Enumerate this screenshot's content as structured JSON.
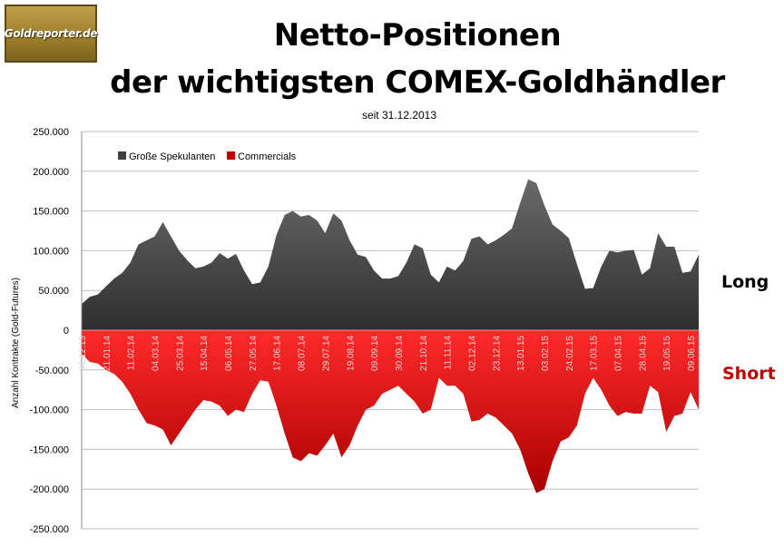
{
  "logo": {
    "text": "Goldreporter.de"
  },
  "header": {
    "title_line1": "Netto-Positionen",
    "title_line2": "der wichtigsten COMEX-Goldhändler",
    "subtitle": "seit 31.12.2013"
  },
  "side_labels": {
    "long": "Long",
    "short": "Short"
  },
  "colors": {
    "long": "#3f3f3f",
    "short": "#c00000",
    "grid": "#bfbfbf"
  },
  "chart_data": {
    "type": "area",
    "title": "Netto-Positionen der wichtigsten COMEX-Goldhändler",
    "subtitle": "seit 31.12.2013",
    "ylabel": "Anzahl Kontrakte  (Gold-Futures)",
    "xlabel": "",
    "ylim": [
      -250000,
      250000
    ],
    "yticks": [
      {
        "value": 250000,
        "label": "250.000"
      },
      {
        "value": 200000,
        "label": "200.000"
      },
      {
        "value": 150000,
        "label": "150.000"
      },
      {
        "value": 100000,
        "label": "100.000"
      },
      {
        "value": 50000,
        "label": "50.000"
      },
      {
        "value": 0,
        "label": "0"
      },
      {
        "value": -50000,
        "label": "-50.000"
      },
      {
        "value": -100000,
        "label": "-100.000"
      },
      {
        "value": -150000,
        "label": "-150.000"
      },
      {
        "value": -200000,
        "label": "-200.000"
      },
      {
        "value": -250000,
        "label": "-250.000"
      }
    ],
    "grid": true,
    "legend_position": "top-left",
    "x_tick_labels": [
      "31.12.13",
      "21.01.14",
      "11.02.14",
      "04.03.14",
      "25.03.14",
      "15.04.14",
      "06.05.14",
      "27.05.14",
      "17.06.14",
      "08.07.14",
      "29.07.14",
      "19.08.14",
      "09.09.14",
      "30.09.14",
      "21.10.14",
      "11.11.14",
      "02.12.14",
      "23.12.14",
      "13.01.15",
      "03.02.15",
      "24.02.15",
      "17.03.15",
      "07.04.15",
      "28.04.15",
      "19.05.15",
      "09.06.15"
    ],
    "x_tick_every": 3,
    "x": [
      "31.12.13",
      "07.01.14",
      "14.01.14",
      "21.01.14",
      "28.01.14",
      "04.02.14",
      "11.02.14",
      "18.02.14",
      "25.02.14",
      "04.03.14",
      "11.03.14",
      "18.03.14",
      "25.03.14",
      "01.04.14",
      "08.04.14",
      "15.04.14",
      "22.04.14",
      "29.04.14",
      "06.05.14",
      "13.05.14",
      "20.05.14",
      "27.05.14",
      "03.06.14",
      "10.06.14",
      "17.06.14",
      "24.06.14",
      "01.07.14",
      "08.07.14",
      "15.07.14",
      "22.07.14",
      "29.07.14",
      "05.08.14",
      "12.08.14",
      "19.08.14",
      "26.08.14",
      "02.09.14",
      "09.09.14",
      "16.09.14",
      "23.09.14",
      "30.09.14",
      "07.10.14",
      "14.10.14",
      "21.10.14",
      "28.10.14",
      "04.11.14",
      "11.11.14",
      "18.11.14",
      "25.11.14",
      "02.12.14",
      "09.12.14",
      "16.12.14",
      "23.12.14",
      "30.12.14",
      "06.01.15",
      "13.01.15",
      "20.01.15",
      "27.01.15",
      "03.02.15",
      "10.02.15",
      "17.02.15",
      "24.02.15",
      "03.03.15",
      "10.03.15",
      "17.03.15",
      "24.03.15",
      "31.03.15",
      "07.04.15",
      "14.04.15",
      "21.04.15",
      "28.04.15",
      "05.05.15",
      "12.05.15",
      "19.05.15",
      "26.05.15",
      "02.06.15",
      "09.06.15",
      "16.06.15"
    ],
    "series": [
      {
        "name": "Große Spekulanten",
        "color": "#3f3f3f",
        "values": [
          33000,
          42000,
          45000,
          55000,
          65000,
          72000,
          85000,
          108000,
          113000,
          118000,
          136000,
          118000,
          100000,
          88000,
          78000,
          80000,
          85000,
          97000,
          90000,
          96000,
          75000,
          58000,
          60000,
          80000,
          120000,
          145000,
          150000,
          143000,
          145000,
          138000,
          122000,
          147000,
          138000,
          113000,
          95000,
          92000,
          75000,
          65000,
          65000,
          68000,
          85000,
          108000,
          103000,
          70000,
          60000,
          80000,
          75000,
          87000,
          115000,
          118000,
          108000,
          113000,
          120000,
          128000,
          160000,
          190000,
          185000,
          157000,
          133000,
          125000,
          116000,
          83000,
          52000,
          53000,
          80000,
          100000,
          98000,
          100000,
          101000,
          70000,
          78000,
          122000,
          105000,
          105000,
          72000,
          74000,
          95000
        ]
      },
      {
        "name": "Commercials",
        "color": "#c00000",
        "values": [
          -30000,
          -40000,
          -42000,
          -50000,
          -55000,
          -65000,
          -80000,
          -100000,
          -117000,
          -120000,
          -125000,
          -145000,
          -130000,
          -115000,
          -100000,
          -88000,
          -90000,
          -95000,
          -108000,
          -100000,
          -103000,
          -80000,
          -63000,
          -65000,
          -95000,
          -130000,
          -160000,
          -165000,
          -155000,
          -158000,
          -145000,
          -130000,
          -160000,
          -145000,
          -120000,
          -100000,
          -95000,
          -80000,
          -75000,
          -70000,
          -80000,
          -90000,
          -105000,
          -100000,
          -60000,
          -70000,
          -70000,
          -80000,
          -115000,
          -113000,
          -105000,
          -110000,
          -120000,
          -130000,
          -150000,
          -180000,
          -205000,
          -200000,
          -165000,
          -140000,
          -135000,
          -120000,
          -80000,
          -60000,
          -75000,
          -95000,
          -108000,
          -103000,
          -105000,
          -105000,
          -70000,
          -78000,
          -128000,
          -108000,
          -105000,
          -78000,
          -100000
        ]
      }
    ]
  }
}
